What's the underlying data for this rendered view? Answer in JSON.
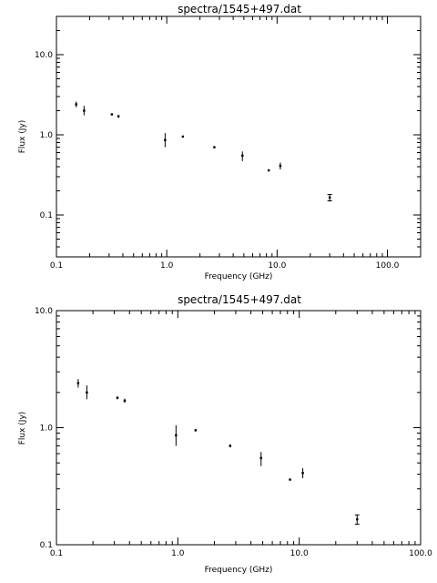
{
  "chart_data": [
    {
      "type": "scatter",
      "title": "spectra/1545+497.dat",
      "xlabel": "Frequency (GHz)",
      "ylabel": "Flux (Jy)",
      "xscale": "log",
      "yscale": "log",
      "xlim": [
        0.1,
        200
      ],
      "ylim": [
        0.03,
        30
      ],
      "xticks": [
        {
          "v": 0.1,
          "label": "0.1"
        },
        {
          "v": 1,
          "label": "1.0"
        },
        {
          "v": 10,
          "label": "10.0"
        },
        {
          "v": 100,
          "label": "100.0"
        }
      ],
      "yticks": [
        {
          "v": 0.1,
          "label": "0.1"
        },
        {
          "v": 1,
          "label": "1.0"
        },
        {
          "v": 10,
          "label": "10.0"
        }
      ],
      "points": [
        {
          "x": 0.151,
          "y": 2.4,
          "ylo": 2.2,
          "yhi": 2.6
        },
        {
          "x": 0.178,
          "y": 2.0,
          "ylo": 1.75,
          "yhi": 2.3
        },
        {
          "x": 0.318,
          "y": 1.8,
          "ylo": 1.75,
          "yhi": 1.85
        },
        {
          "x": 0.365,
          "y": 1.7,
          "ylo": 1.63,
          "yhi": 1.77
        },
        {
          "x": 0.966,
          "y": 0.86,
          "ylo": 0.7,
          "yhi": 1.05
        },
        {
          "x": 1.4,
          "y": 0.95,
          "ylo": 0.93,
          "yhi": 0.97
        },
        {
          "x": 2.7,
          "y": 0.7,
          "ylo": 0.68,
          "yhi": 0.72
        },
        {
          "x": 4.85,
          "y": 0.55,
          "ylo": 0.47,
          "yhi": 0.62
        },
        {
          "x": 8.4,
          "y": 0.36,
          "ylo": 0.355,
          "yhi": 0.365
        },
        {
          "x": 10.7,
          "y": 0.41,
          "ylo": 0.37,
          "yhi": 0.45
        },
        {
          "x": 30.0,
          "y": 0.165,
          "ylo": 0.15,
          "yhi": 0.18,
          "capped": true
        }
      ]
    },
    {
      "type": "scatter",
      "title": "spectra/1545+497.dat",
      "xlabel": "Frequency (GHz)",
      "ylabel": "Flux (Jy)",
      "xscale": "log",
      "yscale": "log",
      "xlim": [
        0.1,
        100
      ],
      "ylim": [
        0.1,
        10
      ],
      "xticks": [
        {
          "v": 0.1,
          "label": "0.1"
        },
        {
          "v": 1,
          "label": "1.0"
        },
        {
          "v": 10,
          "label": "10.0"
        },
        {
          "v": 100,
          "label": "100.0"
        }
      ],
      "yticks": [
        {
          "v": 0.1,
          "label": "0.1"
        },
        {
          "v": 1,
          "label": "1.0"
        },
        {
          "v": 10,
          "label": "10.0"
        }
      ],
      "points": [
        {
          "x": 0.151,
          "y": 2.4,
          "ylo": 2.2,
          "yhi": 2.6
        },
        {
          "x": 0.178,
          "y": 2.0,
          "ylo": 1.75,
          "yhi": 2.3
        },
        {
          "x": 0.318,
          "y": 1.8,
          "ylo": 1.75,
          "yhi": 1.85
        },
        {
          "x": 0.365,
          "y": 1.7,
          "ylo": 1.63,
          "yhi": 1.77
        },
        {
          "x": 0.966,
          "y": 0.86,
          "ylo": 0.7,
          "yhi": 1.05
        },
        {
          "x": 1.4,
          "y": 0.95,
          "ylo": 0.93,
          "yhi": 0.97
        },
        {
          "x": 2.7,
          "y": 0.7,
          "ylo": 0.68,
          "yhi": 0.72
        },
        {
          "x": 4.85,
          "y": 0.55,
          "ylo": 0.47,
          "yhi": 0.62
        },
        {
          "x": 8.4,
          "y": 0.36,
          "ylo": 0.355,
          "yhi": 0.365
        },
        {
          "x": 10.7,
          "y": 0.41,
          "ylo": 0.37,
          "yhi": 0.45
        },
        {
          "x": 30.0,
          "y": 0.165,
          "ylo": 0.15,
          "yhi": 0.18,
          "capped": true
        }
      ]
    }
  ]
}
